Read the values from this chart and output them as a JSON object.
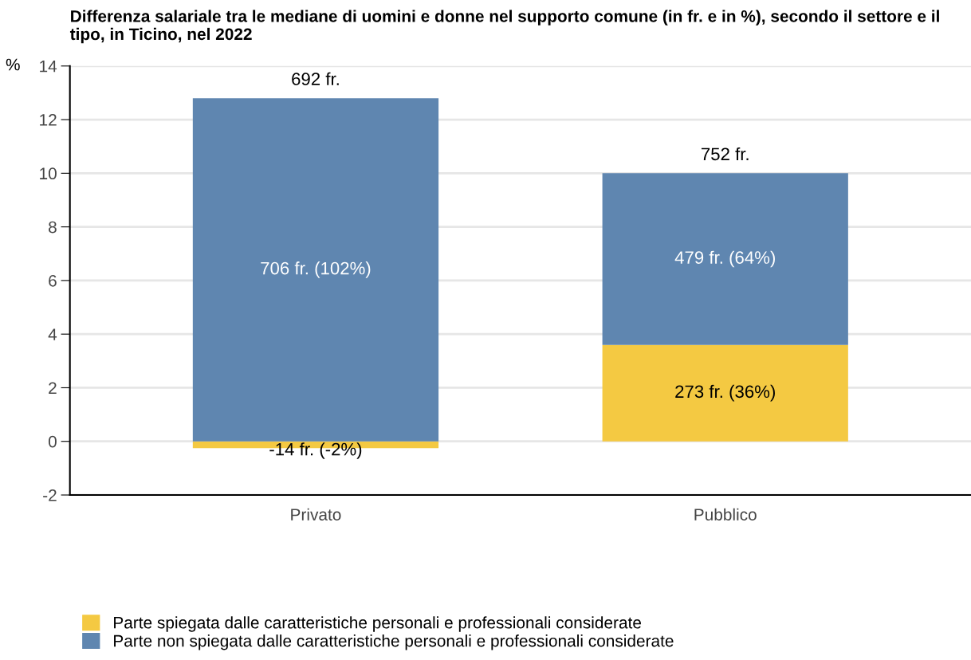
{
  "chart_data": {
    "type": "bar",
    "title": "Differenza salariale tra le mediane di uomini e donne nel supporto comune (in fr. e in %), secondo il settore e il tipo, in Ticino, nel 2022",
    "ylabel": "%",
    "categories": [
      "Privato",
      "Pubblico"
    ],
    "stacked": true,
    "series": [
      {
        "name": "Parte spiegata dalle caratteristiche personali e professionali considerate",
        "color": "#f4c942",
        "values": [
          -0.25,
          3.6
        ]
      },
      {
        "name": "Parte non spiegata dalle caratteristiche personali e professionali considerate",
        "color": "#5f86b0",
        "values": [
          12.8,
          6.4
        ]
      }
    ],
    "annotations": [
      "692 fr.",
      "752 fr.",
      "-14 fr. (-2%)",
      "273 fr. (36%)",
      "706 fr. (102%)",
      "479 fr. (64%)"
    ],
    "ylim": [
      -2,
      14
    ],
    "yticks": [
      -2,
      0,
      2,
      4,
      6,
      8,
      10,
      12,
      14
    ],
    "grid": "y",
    "legend": "bottom left"
  }
}
